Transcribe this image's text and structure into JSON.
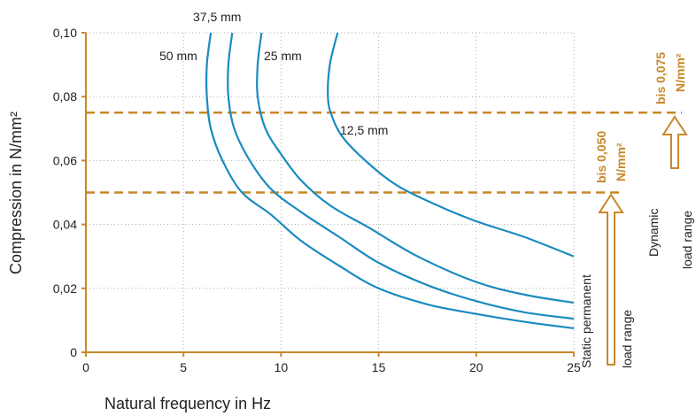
{
  "colors": {
    "axis": "#c8872a",
    "curve": "#1a8bc0",
    "threshold": "#c8872a",
    "grid": "#aaaaaa"
  },
  "chart_data": {
    "type": "line",
    "title": "",
    "xlabel": "Natural frequency in Hz",
    "ylabel": "Compression in N/mm²",
    "xlim": [
      0,
      25
    ],
    "ylim": [
      0,
      0.1
    ],
    "grid": true,
    "x_ticks": [
      "0",
      "5",
      "10",
      "15",
      "20",
      "25"
    ],
    "y_ticks": [
      "0",
      "0,02",
      "0,04",
      "0,06",
      "0,08",
      "0,10"
    ],
    "series": [
      {
        "name": "50 mm",
        "points": [
          [
            6.4,
            0.1
          ],
          [
            6.2,
            0.09
          ],
          [
            6.2,
            0.08
          ],
          [
            6.4,
            0.07
          ],
          [
            7.0,
            0.06
          ],
          [
            8.0,
            0.05
          ],
          [
            9.5,
            0.043
          ],
          [
            11.0,
            0.035
          ],
          [
            13.0,
            0.027
          ],
          [
            15.0,
            0.02
          ],
          [
            17.5,
            0.015
          ],
          [
            20.0,
            0.012
          ],
          [
            22.5,
            0.0095
          ],
          [
            25.0,
            0.0075
          ]
        ]
      },
      {
        "name": "37,5 mm",
        "points": [
          [
            7.5,
            0.1
          ],
          [
            7.3,
            0.09
          ],
          [
            7.3,
            0.08
          ],
          [
            7.6,
            0.07
          ],
          [
            8.4,
            0.06
          ],
          [
            9.5,
            0.051
          ],
          [
            11.0,
            0.044
          ],
          [
            13.0,
            0.036
          ],
          [
            15.0,
            0.028
          ],
          [
            17.5,
            0.021
          ],
          [
            20.0,
            0.016
          ],
          [
            22.5,
            0.0125
          ],
          [
            25.0,
            0.0105
          ]
        ]
      },
      {
        "name": "25 mm",
        "points": [
          [
            9.0,
            0.1
          ],
          [
            8.8,
            0.09
          ],
          [
            8.8,
            0.08
          ],
          [
            9.2,
            0.07
          ],
          [
            10.0,
            0.062
          ],
          [
            11.0,
            0.054
          ],
          [
            12.5,
            0.046
          ],
          [
            14.5,
            0.039
          ],
          [
            17.0,
            0.03
          ],
          [
            20.0,
            0.022
          ],
          [
            22.5,
            0.018
          ],
          [
            25.0,
            0.0155
          ]
        ]
      },
      {
        "name": "12,5 mm",
        "points": [
          [
            12.9,
            0.1
          ],
          [
            12.5,
            0.09
          ],
          [
            12.4,
            0.08
          ],
          [
            12.6,
            0.074
          ],
          [
            13.2,
            0.067
          ],
          [
            14.5,
            0.059
          ],
          [
            16.0,
            0.052
          ],
          [
            18.0,
            0.046
          ],
          [
            20.0,
            0.041
          ],
          [
            22.5,
            0.036
          ],
          [
            25.0,
            0.03
          ]
        ]
      }
    ],
    "thresholds": [
      {
        "value": 0.075,
        "label_top": "bis 0,075",
        "label_bottom": "N/mm²",
        "range_label_1": "Dynamic",
        "range_label_2": "load range"
      },
      {
        "value": 0.05,
        "label_top": "bis 0,050",
        "label_bottom": "N/mm²",
        "range_label_1": "Static permanent",
        "range_label_2": "load range"
      }
    ]
  }
}
